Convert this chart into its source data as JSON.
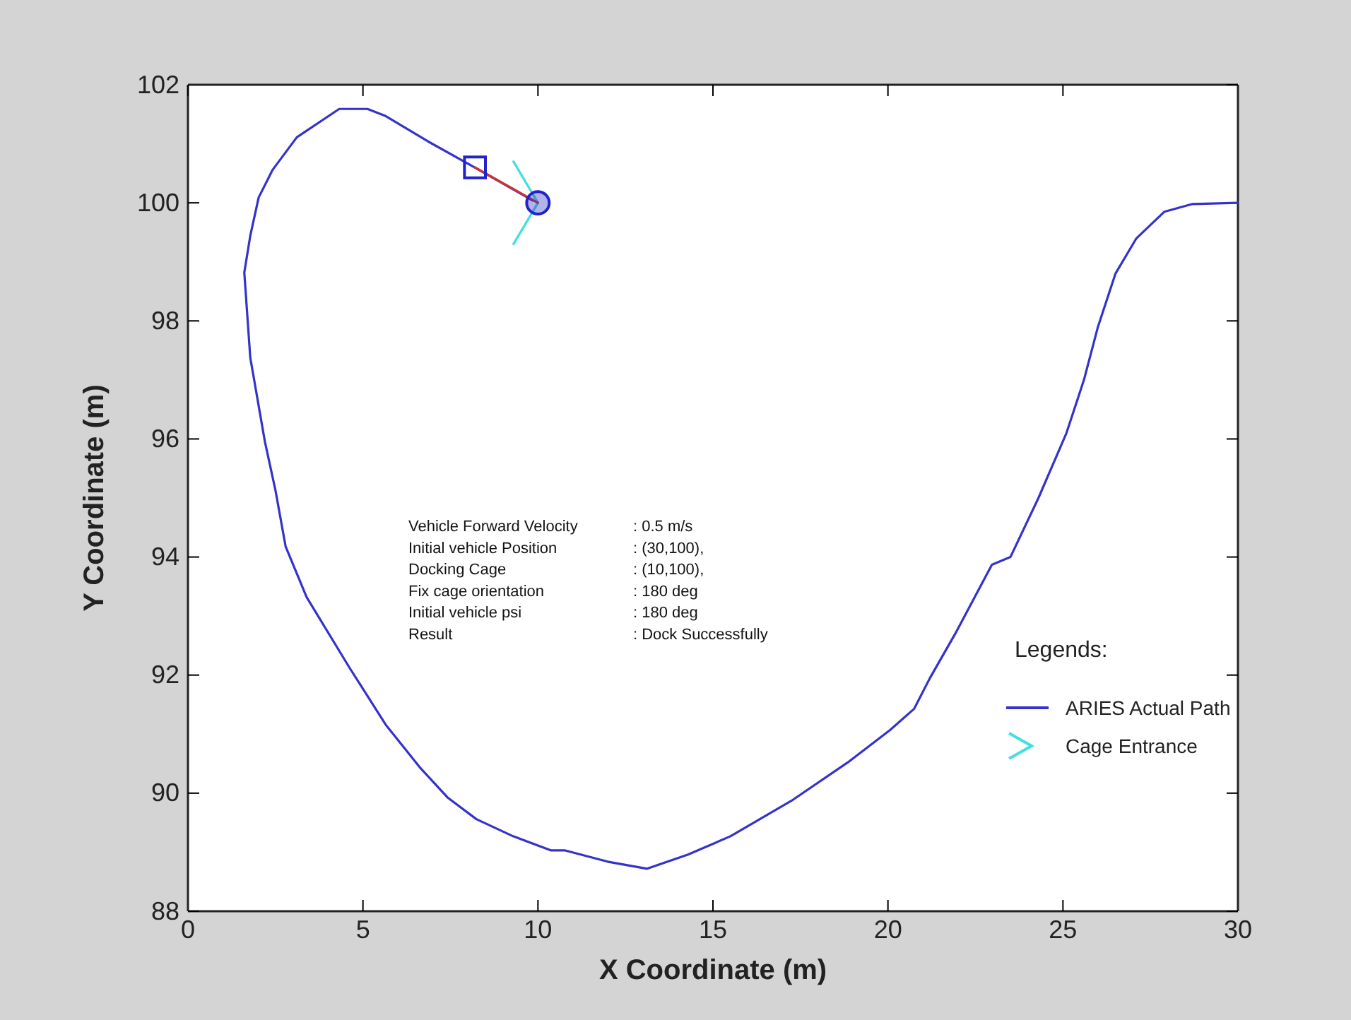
{
  "chart_data": {
    "type": "line",
    "xlabel": "X Coordinate (m)",
    "ylabel": "Y Coordinate (m)",
    "xlim": [
      0,
      30
    ],
    "ylim": [
      88,
      102
    ],
    "xticks": [
      0,
      5,
      10,
      15,
      20,
      25,
      30
    ],
    "yticks": [
      88,
      90,
      92,
      94,
      96,
      98,
      100,
      102
    ],
    "grid": false,
    "legend": "bottom right",
    "legend_title": "Legends:",
    "annotations": [
      "Vehicle Forward Velocity : 0.5 m/s",
      "Initial vehicle Position : (30,100),",
      "Docking Cage : (10,100),",
      "Fix cage orientation : 180 deg",
      "Initial vehicle psi : 180 deg",
      "Result : Dock Successfully"
    ],
    "series": [
      {
        "name": "ARIES Actual Path",
        "color": "#3333cc",
        "marker": "none",
        "x": [
          30,
          28.7,
          27.9,
          27.1,
          26.5,
          26.0,
          25.6,
          25.1,
          24.3,
          23.5,
          22.97,
          21.96,
          21.2,
          20.75,
          20.06,
          18.85,
          17.24,
          15.5,
          14.29,
          13.12,
          11.99,
          10.78,
          10.38,
          9.29,
          8.24,
          7.43,
          6.62,
          5.65,
          4.6,
          3.39,
          2.79,
          2.5,
          2.2,
          1.78,
          1.61,
          1.78,
          2.02,
          2.42,
          3.11,
          4.32,
          5.13,
          5.65,
          6.86,
          8.07,
          9.85
        ],
        "values": [
          100,
          99.98,
          99.85,
          99.4,
          98.8,
          97.9,
          97.0,
          96.1,
          95.0,
          94.0,
          93.87,
          92.74,
          91.95,
          91.43,
          91.07,
          90.52,
          89.87,
          89.27,
          88.96,
          88.72,
          88.84,
          89.03,
          89.03,
          89.27,
          89.56,
          89.92,
          90.44,
          91.16,
          92.14,
          93.32,
          94.18,
          95.13,
          95.95,
          97.38,
          98.82,
          99.44,
          100.09,
          100.56,
          101.11,
          101.59,
          101.59,
          101.47,
          101.04,
          100.64,
          100.04
        ]
      },
      {
        "name": "Cage Entrance",
        "color": "#40e0e0",
        "marker": "none",
        "x": [
          9.3,
          10,
          9.3
        ],
        "values": [
          100.7,
          100,
          99.3
        ]
      },
      {
        "color": "#cc3333",
        "marker": "none",
        "x": [
          8.2,
          10
        ],
        "values": [
          100.6,
          100
        ]
      },
      {
        "type": "scatter",
        "color": "#2222cc",
        "marker": "square",
        "x": [
          8.2
        ],
        "values": [
          100.6
        ]
      },
      {
        "type": "scatter",
        "color": "#2222cc",
        "marker": "circle",
        "x": [
          10
        ],
        "values": [
          100
        ]
      }
    ]
  }
}
